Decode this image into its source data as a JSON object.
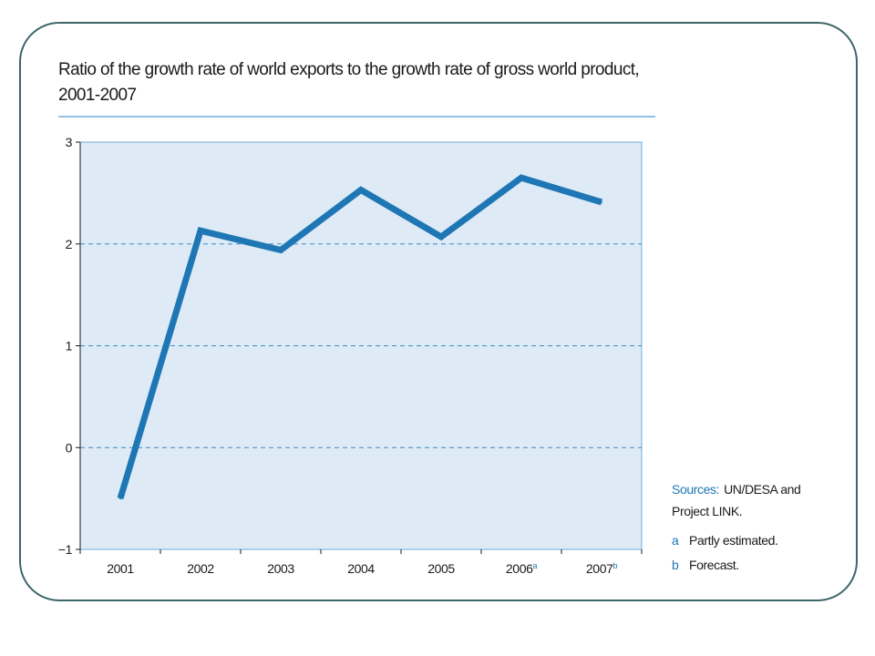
{
  "colors": {
    "frame": "#3d6668",
    "plot_background": "#deeaf6",
    "plot_border": "#6aaedc",
    "gridline": "#3c8cc8",
    "series_line": "#1e77b4",
    "source_label": "#1e77b4",
    "note_key": "#1e77b4",
    "title_rule": "#6aaedc"
  },
  "chart_data": {
    "type": "line",
    "title_lines": [
      "Ratio of the growth rate of world exports to the growth rate of gross world product,",
      "2001-2007"
    ],
    "xlabel": "",
    "ylabel": "",
    "categories": [
      "2001",
      "2002",
      "2003",
      "2004",
      "2005",
      "2006",
      "2007"
    ],
    "category_superscripts": [
      "",
      "",
      "",
      "",
      "",
      "a",
      "b"
    ],
    "values": [
      -0.5,
      2.13,
      1.94,
      2.53,
      2.07,
      2.65,
      2.41
    ],
    "ylim": [
      -1,
      3
    ],
    "yticks": [
      "-1",
      "0",
      "1",
      "2",
      "3"
    ],
    "grid": true,
    "legend": "none"
  },
  "notes": {
    "source_label": "Sources:",
    "source_text_1": "UN/DESA and",
    "source_text_2": "Project LINK.",
    "footnotes": [
      {
        "key": "a",
        "text": "Partly estimated."
      },
      {
        "key": "b",
        "text": "Forecast."
      }
    ]
  }
}
